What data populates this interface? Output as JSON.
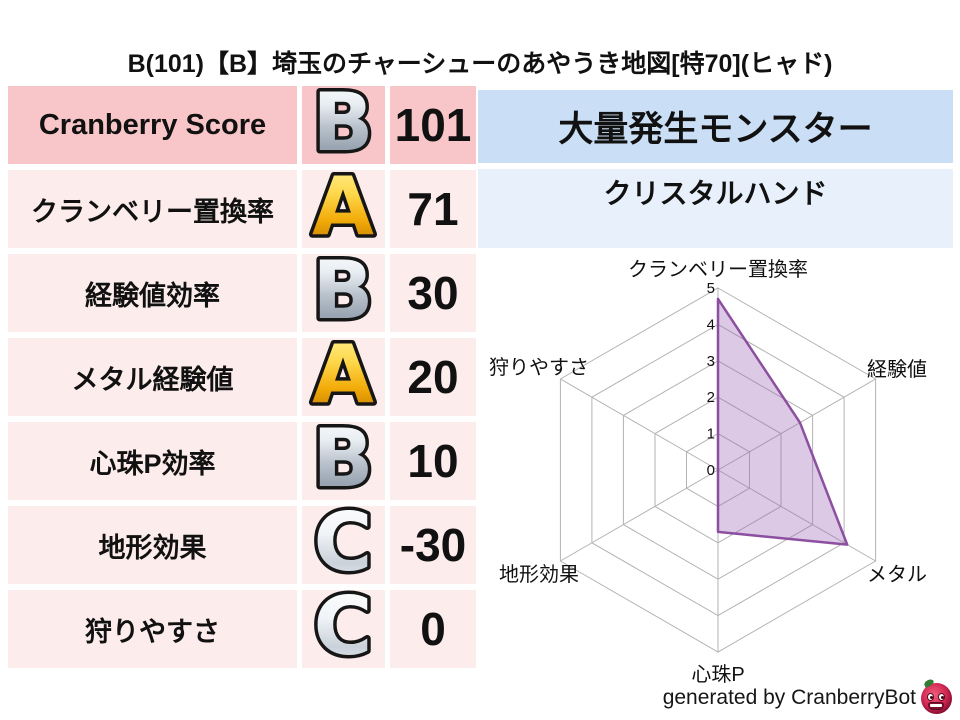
{
  "title": "B(101)【B】埼玉のチャーシューのあやうき地図[特70](ヒャド)",
  "stats_table": {
    "rows": [
      {
        "label": "Cranberry Score",
        "grade": "B",
        "value": "101"
      },
      {
        "label": "クランベリー置換率",
        "grade": "A",
        "value": "71"
      },
      {
        "label": "経験値効率",
        "grade": "B",
        "value": "30"
      },
      {
        "label": "メタル経験値",
        "grade": "A",
        "value": "20"
      },
      {
        "label": "心珠P効率",
        "grade": "B",
        "value": "10"
      },
      {
        "label": "地形効果",
        "grade": "C",
        "value": "-30"
      },
      {
        "label": "狩りやすさ",
        "grade": "C",
        "value": "0"
      }
    ]
  },
  "grade_colors": {
    "A": "gold",
    "B": "silver",
    "C": "silver-light"
  },
  "monster_panel": {
    "header": "大量発生モンスター",
    "monster_name": "クリスタルハンド"
  },
  "chart_data": {
    "type": "radar",
    "axes": [
      "クランベリー置換率",
      "経験値",
      "メタル",
      "心珠P",
      "地形効果",
      "狩りやすさ"
    ],
    "values": [
      4.7,
      2.6,
      4.1,
      1.7,
      0,
      0
    ],
    "max": 5,
    "ticks": [
      0,
      1,
      2,
      3,
      4,
      5
    ],
    "tick_labels": [
      "0",
      "1",
      "2",
      "3",
      "4",
      "5"
    ],
    "grid_shape": "hexagon",
    "legend": "none",
    "fill_color": "#9a64b4",
    "fill_opacity": 0.35,
    "stroke_color": "#8d4fa0",
    "grid_color": "#b3b3b3",
    "label_color": "#111111"
  },
  "footer": {
    "credit": "generated by CranberryBot",
    "logo": "cranberry-bot-logo"
  },
  "colors": {
    "row_first_bg": "#f8c6c8",
    "row_bg": "#fdecec",
    "monster_header_bg": "#cadef5",
    "monster_name_bg": "#e8f1fb",
    "grade_gold": "#f5b80e",
    "grade_silver": "#c3ccd5",
    "text": "#111111"
  }
}
